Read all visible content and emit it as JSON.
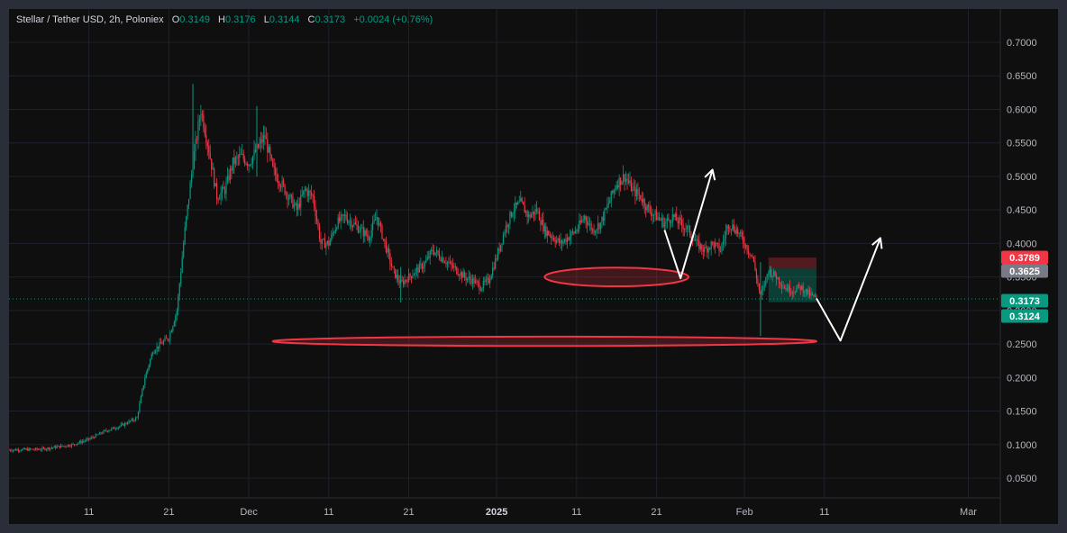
{
  "legend": {
    "title": "Stellar / Tether USD, 2h, Poloniex",
    "o_label": "O",
    "o_value": "0.3149",
    "h_label": "H",
    "h_value": "0.3176",
    "l_label": "L",
    "l_value": "0.3144",
    "c_label": "C",
    "c_value": "0.3173",
    "change": "+0.0024 (+0.76%)"
  },
  "colors": {
    "up": "#089981",
    "down": "#f23645",
    "background": "#0f0f0f",
    "grid": "#1e222d",
    "annotation": "#f23645",
    "arrow": "#ffffff"
  },
  "price_tags": [
    {
      "value": "0.3789",
      "color": "#f23645"
    },
    {
      "value": "0.3625",
      "color": "#787b86"
    },
    {
      "value": "0.3173",
      "color": "#089981"
    },
    {
      "value": "0.3124",
      "color": "#089981"
    }
  ],
  "chart_data": {
    "type": "candlestick",
    "symbol": "Stellar / Tether USD",
    "interval": "2h",
    "exchange": "Poloniex",
    "y_ticks": [
      "0.7000",
      "0.6500",
      "0.6000",
      "0.5500",
      "0.5000",
      "0.4500",
      "0.4000",
      "0.3500",
      "0.3000",
      "0.2500",
      "0.2000",
      "0.1500",
      "0.1000",
      "0.0500"
    ],
    "ylim": [
      0.03,
      0.72
    ],
    "x_ticks": [
      {
        "label": "11",
        "date": "2024-11-11"
      },
      {
        "label": "21",
        "date": "2024-11-21"
      },
      {
        "label": "Dec",
        "date": "2024-12-01"
      },
      {
        "label": "11",
        "date": "2024-12-11"
      },
      {
        "label": "21",
        "date": "2024-12-21"
      },
      {
        "label": "2025",
        "date": "2025-01-01",
        "bold": true
      },
      {
        "label": "11",
        "date": "2025-01-11"
      },
      {
        "label": "21",
        "date": "2025-01-21"
      },
      {
        "label": "Feb",
        "date": "2025-02-01"
      },
      {
        "label": "11",
        "date": "2025-02-11"
      },
      {
        "label": "Mar",
        "date": "2025-03-01"
      }
    ],
    "xlim": [
      "2024-11-01",
      "2025-03-05"
    ],
    "price_path": [
      [
        "2024-11-01",
        0.092
      ],
      [
        "2024-11-05",
        0.093
      ],
      [
        "2024-11-09",
        0.1
      ],
      [
        "2024-11-11",
        0.108
      ],
      [
        "2024-11-13",
        0.12
      ],
      [
        "2024-11-15",
        0.128
      ],
      [
        "2024-11-17",
        0.14
      ],
      [
        "2024-11-18",
        0.2
      ],
      [
        "2024-11-19",
        0.24
      ],
      [
        "2024-11-20",
        0.25
      ],
      [
        "2024-11-21",
        0.26
      ],
      [
        "2024-11-22",
        0.3
      ],
      [
        "2024-11-23",
        0.42
      ],
      [
        "2024-11-24",
        0.52
      ],
      [
        "2024-11-25",
        0.6
      ],
      [
        "2024-11-26",
        0.54
      ],
      [
        "2024-11-27",
        0.47
      ],
      [
        "2024-11-28",
        0.48
      ],
      [
        "2024-11-29",
        0.52
      ],
      [
        "2024-11-30",
        0.53
      ],
      [
        "2024-12-01",
        0.52
      ],
      [
        "2024-12-02",
        0.54
      ],
      [
        "2024-12-03",
        0.56
      ],
      [
        "2024-12-04",
        0.51
      ],
      [
        "2024-12-05",
        0.49
      ],
      [
        "2024-12-06",
        0.47
      ],
      [
        "2024-12-07",
        0.45
      ],
      [
        "2024-12-08",
        0.48
      ],
      [
        "2024-12-09",
        0.47
      ],
      [
        "2024-12-10",
        0.4
      ],
      [
        "2024-12-11",
        0.4
      ],
      [
        "2024-12-12",
        0.43
      ],
      [
        "2024-12-13",
        0.44
      ],
      [
        "2024-12-14",
        0.43
      ],
      [
        "2024-12-15",
        0.42
      ],
      [
        "2024-12-16",
        0.41
      ],
      [
        "2024-12-17",
        0.44
      ],
      [
        "2024-12-18",
        0.4
      ],
      [
        "2024-12-19",
        0.36
      ],
      [
        "2024-12-20",
        0.34
      ],
      [
        "2024-12-21",
        0.35
      ],
      [
        "2024-12-22",
        0.36
      ],
      [
        "2024-12-23",
        0.37
      ],
      [
        "2024-12-24",
        0.39
      ],
      [
        "2024-12-25",
        0.38
      ],
      [
        "2024-12-26",
        0.37
      ],
      [
        "2024-12-27",
        0.36
      ],
      [
        "2024-12-28",
        0.35
      ],
      [
        "2024-12-29",
        0.345
      ],
      [
        "2024-12-30",
        0.335
      ],
      [
        "2024-12-31",
        0.345
      ],
      [
        "2025-01-01",
        0.38
      ],
      [
        "2025-01-02",
        0.42
      ],
      [
        "2025-01-03",
        0.45
      ],
      [
        "2025-01-04",
        0.46
      ],
      [
        "2025-01-05",
        0.44
      ],
      [
        "2025-01-06",
        0.45
      ],
      [
        "2025-01-07",
        0.42
      ],
      [
        "2025-01-08",
        0.41
      ],
      [
        "2025-01-09",
        0.4
      ],
      [
        "2025-01-10",
        0.41
      ],
      [
        "2025-01-11",
        0.42
      ],
      [
        "2025-01-12",
        0.44
      ],
      [
        "2025-01-13",
        0.42
      ],
      [
        "2025-01-14",
        0.43
      ],
      [
        "2025-01-15",
        0.46
      ],
      [
        "2025-01-16",
        0.49
      ],
      [
        "2025-01-17",
        0.5
      ],
      [
        "2025-01-18",
        0.48
      ],
      [
        "2025-01-19",
        0.47
      ],
      [
        "2025-01-20",
        0.45
      ],
      [
        "2025-01-21",
        0.44
      ],
      [
        "2025-01-22",
        0.43
      ],
      [
        "2025-01-23",
        0.44
      ],
      [
        "2025-01-24",
        0.43
      ],
      [
        "2025-01-25",
        0.42
      ],
      [
        "2025-01-26",
        0.4
      ],
      [
        "2025-01-27",
        0.39
      ],
      [
        "2025-01-28",
        0.4
      ],
      [
        "2025-01-29",
        0.39
      ],
      [
        "2025-01-30",
        0.43
      ],
      [
        "2025-01-31",
        0.42
      ],
      [
        "2025-02-01",
        0.4
      ],
      [
        "2025-02-02",
        0.38
      ],
      [
        "2025-02-03",
        0.32
      ],
      [
        "2025-02-04",
        0.36
      ],
      [
        "2025-02-05",
        0.35
      ],
      [
        "2025-02-06",
        0.335
      ],
      [
        "2025-02-07",
        0.33
      ],
      [
        "2025-02-08",
        0.335
      ],
      [
        "2025-02-09",
        0.325
      ],
      [
        "2025-02-10",
        0.317
      ]
    ],
    "annotations": {
      "ellipses": [
        {
          "center_date": "2025-01-16",
          "half_width_days": 9,
          "price": 0.35,
          "price_half_height": 0.014
        },
        {
          "center_date": "2025-01-07",
          "half_width_days": 34,
          "price": 0.254,
          "price_half_height": 0.007
        }
      ],
      "position_box": {
        "start_date": "2025-02-04",
        "end_date": "2025-02-10",
        "entry": 0.3625,
        "stop": 0.3789,
        "target": 0.3124
      },
      "arrows": [
        [
          [
            "2025-01-22",
            0.42
          ],
          [
            "2025-01-24",
            0.348
          ],
          [
            "2025-01-28",
            0.51
          ],
          [
            "2025-01-27",
            0.612
          ]
        ],
        [
          [
            "2025-02-10",
            0.318
          ],
          [
            "2025-02-13",
            0.255
          ],
          [
            "2025-02-18",
            0.408
          ],
          [
            "2025-02-17",
            0.412
          ]
        ]
      ]
    }
  }
}
